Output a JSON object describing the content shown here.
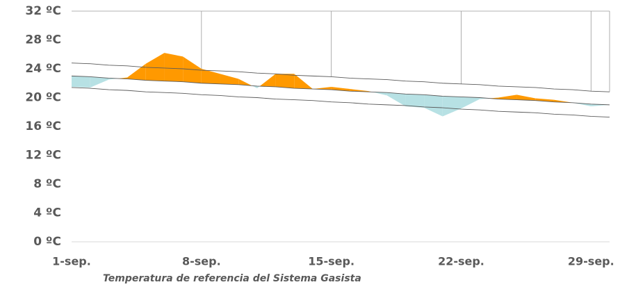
{
  "chart_data": {
    "type": "band-area",
    "caption": "Temperatura de referencia del Sistema Gasista",
    "categories": [
      "1-sep.",
      null,
      null,
      null,
      null,
      null,
      null,
      "8-sep.",
      null,
      null,
      null,
      null,
      null,
      null,
      "15-sep.",
      null,
      null,
      null,
      null,
      null,
      null,
      "22-sep.",
      null,
      null,
      null,
      null,
      null,
      null,
      "29-sep.",
      null
    ],
    "series": [
      {
        "role": "actual",
        "color": "#ff9900",
        "values": [
          21.5,
          21.4,
          22.5,
          22.8,
          24.7,
          26.2,
          25.7,
          24.0,
          23.3,
          22.6,
          21.3,
          23.3,
          23.3,
          21.2,
          21.5,
          21.2,
          20.9,
          20.3,
          18.8,
          18.6,
          17.4,
          18.5,
          19.8,
          20.0,
          20.4,
          19.9,
          19.7,
          19.3,
          18.8,
          19.0
        ]
      },
      {
        "role": "reference",
        "color": "#595959",
        "values": [
          23.0,
          22.9,
          22.7,
          22.6,
          22.4,
          22.3,
          22.2,
          22.0,
          21.9,
          21.8,
          21.6,
          21.5,
          21.3,
          21.2,
          21.1,
          20.9,
          20.8,
          20.7,
          20.5,
          20.4,
          20.2,
          20.1,
          20.0,
          19.8,
          19.7,
          19.6,
          19.4,
          19.3,
          19.1,
          19.0
        ]
      },
      {
        "role": "upper",
        "color": "#595959",
        "values": [
          24.8,
          24.7,
          24.5,
          24.4,
          24.2,
          24.1,
          24.0,
          23.8,
          23.7,
          23.6,
          23.4,
          23.3,
          23.1,
          23.0,
          22.9,
          22.7,
          22.6,
          22.5,
          22.3,
          22.2,
          22.0,
          21.9,
          21.8,
          21.6,
          21.5,
          21.4,
          21.2,
          21.1,
          20.9,
          20.8
        ]
      },
      {
        "role": "lower",
        "color": "#595959",
        "values": [
          21.4,
          21.3,
          21.1,
          21.0,
          20.8,
          20.7,
          20.6,
          20.4,
          20.3,
          20.1,
          20.0,
          19.8,
          19.7,
          19.6,
          19.4,
          19.3,
          19.1,
          19.0,
          18.9,
          18.7,
          18.6,
          18.4,
          18.3,
          18.1,
          18.0,
          17.9,
          17.7,
          17.6,
          17.4,
          17.3
        ]
      }
    ],
    "fill_above": "#ff9900",
    "fill_below": "#b7e1e4",
    "ylim": [
      0,
      32
    ],
    "yticks": [
      {
        "value": 0,
        "label": "0 ºC"
      },
      {
        "value": 4,
        "label": "4 ºC"
      },
      {
        "value": 8,
        "label": "8 ºC"
      },
      {
        "value": 12,
        "label": "12 ºC"
      },
      {
        "value": 16,
        "label": "16 ºC"
      },
      {
        "value": 20,
        "label": "20 ºC"
      },
      {
        "value": 24,
        "label": "24 ºC"
      },
      {
        "value": 28,
        "label": "28 ºC"
      },
      {
        "value": 32,
        "label": "32 ºC"
      }
    ]
  }
}
